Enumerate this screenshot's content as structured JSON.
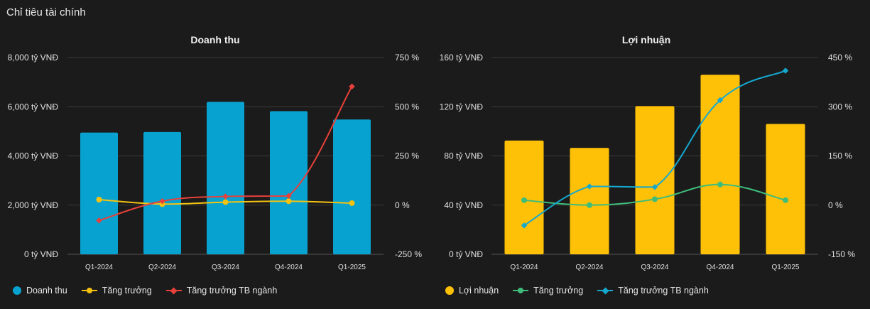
{
  "section_title": "Chỉ tiêu tài chính",
  "colors": {
    "background": "#1b1b1b",
    "grid": "#3a3a3a",
    "revenue_bar": "#08a2d1",
    "revenue_growth": "#f4c311",
    "revenue_industry": "#e8403a",
    "profit_bar": "#ffc107",
    "profit_growth": "#3ebd7a",
    "profit_industry": "#15a8cf"
  },
  "chart_data": [
    {
      "id": "revenue",
      "type": "bar",
      "title": "Doanh thu",
      "categories": [
        "Q1-2024",
        "Q2-2024",
        "Q3-2024",
        "Q4-2024",
        "Q1-2025"
      ],
      "left_axis": {
        "ticks": [
          0,
          2000,
          4000,
          6000,
          8000
        ],
        "tick_labels": [
          "0 tỷ VNĐ",
          "2,000 tỷ VNĐ",
          "4,000 tỷ VNĐ",
          "6,000 tỷ VNĐ",
          "8,000 tỷ VNĐ"
        ],
        "range": [
          0,
          8000
        ]
      },
      "right_axis": {
        "ticks": [
          -250,
          0,
          250,
          500,
          750
        ],
        "tick_labels": [
          "-250 %",
          "0 %",
          "250 %",
          "500 %",
          "750 %"
        ],
        "range": [
          -250,
          750
        ]
      },
      "series": [
        {
          "name": "Doanh thu",
          "kind": "bar",
          "axis": "left",
          "color": "#08a2d1",
          "values": [
            4950,
            4970,
            6200,
            5820,
            5480
          ]
        },
        {
          "name": "Tăng trưởng",
          "kind": "line",
          "axis": "right",
          "marker": "circle",
          "color": "#f4c311",
          "values": [
            28,
            5,
            15,
            20,
            10
          ]
        },
        {
          "name": "Tăng trưởng TB ngành",
          "kind": "line",
          "axis": "right",
          "marker": "diamond",
          "color": "#e8403a",
          "values": [
            -78,
            20,
            44,
            47,
            603
          ]
        }
      ],
      "grid": true,
      "legend_position": "bottom-left"
    },
    {
      "id": "profit",
      "type": "bar",
      "title": "Lợi nhuận",
      "categories": [
        "Q1-2024",
        "Q2-2024",
        "Q3-2024",
        "Q4-2024",
        "Q1-2025"
      ],
      "left_axis": {
        "ticks": [
          0,
          40,
          80,
          120,
          160
        ],
        "tick_labels": [
          "0 tỷ VNĐ",
          "40 tỷ VNĐ",
          "80 tỷ VNĐ",
          "120 tỷ VNĐ",
          "160 tỷ VNĐ"
        ],
        "range": [
          0,
          160
        ]
      },
      "right_axis": {
        "ticks": [
          -150,
          0,
          150,
          300,
          450
        ],
        "tick_labels": [
          "-150 %",
          "0 %",
          "150 %",
          "300 %",
          "450 %"
        ],
        "range": [
          -150,
          450
        ]
      },
      "series": [
        {
          "name": "Lợi nhuận",
          "kind": "bar",
          "axis": "left",
          "color": "#ffc107",
          "values": [
            92.5,
            86.5,
            120.5,
            146,
            106
          ]
        },
        {
          "name": "Tăng trưởng",
          "kind": "line",
          "axis": "right",
          "marker": "circle",
          "color": "#3ebd7a",
          "values": [
            15,
            0,
            18,
            63,
            15
          ]
        },
        {
          "name": "Tăng trưởng TB ngành",
          "kind": "line",
          "axis": "right",
          "marker": "diamond",
          "color": "#15a8cf",
          "values": [
            -62,
            57,
            55,
            320,
            410
          ]
        }
      ],
      "grid": true,
      "legend_position": "bottom-left"
    }
  ]
}
